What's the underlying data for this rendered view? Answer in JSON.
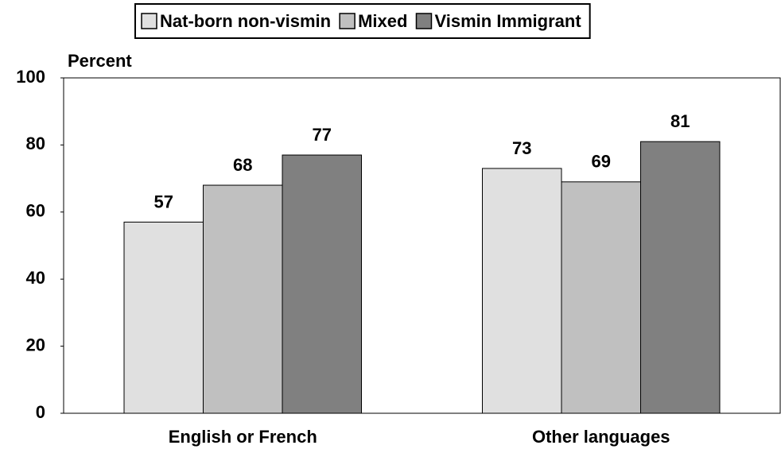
{
  "chart_data": {
    "type": "bar",
    "y_label": "Percent",
    "categories": [
      "English or French",
      "Other languages"
    ],
    "series": [
      {
        "name": "Nat-born non-vismin",
        "color": "#e0e0e0",
        "values": [
          57,
          73
        ]
      },
      {
        "name": "Mixed",
        "color": "#c0c0c0",
        "values": [
          68,
          69
        ]
      },
      {
        "name": "Vismin Immigrant",
        "color": "#808080",
        "values": [
          77,
          81
        ]
      }
    ],
    "ylim": [
      0,
      100
    ],
    "yticks": [
      0,
      20,
      40,
      60,
      80,
      100
    ],
    "grid": false,
    "legend": "top"
  }
}
